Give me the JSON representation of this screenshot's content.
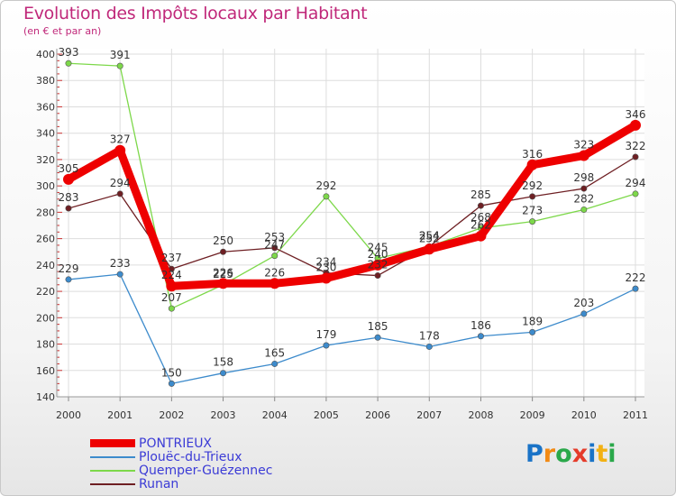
{
  "chart_data": {
    "type": "line",
    "title": "Evolution des Impôts locaux par Habitant",
    "subtitle": "(en € et par an)",
    "x": [
      "2000",
      "2001",
      "2002",
      "2003",
      "2004",
      "2005",
      "2006",
      "2007",
      "2008",
      "2009",
      "2010",
      "2011"
    ],
    "ylim": [
      140,
      400
    ],
    "yticks": [
      140,
      160,
      180,
      200,
      220,
      240,
      260,
      280,
      300,
      320,
      340,
      360,
      380,
      400
    ],
    "grid": true,
    "legend_position": "bottom-left",
    "series": [
      {
        "name": "PONTRIEUX",
        "color": "#ee0000",
        "values": [
          305,
          327,
          224,
          226,
          226,
          230,
          240,
          252,
          262,
          316,
          323,
          346
        ],
        "labels": [
          "305",
          "327",
          "224",
          "226",
          "226",
          "230",
          "240",
          "252",
          "262",
          "316",
          "323",
          "346"
        ]
      },
      {
        "name": "Plouëc-du-Trieux",
        "color": "#3d8bcc",
        "values": [
          229,
          233,
          150,
          158,
          165,
          179,
          185,
          178,
          186,
          189,
          203,
          222
        ],
        "labels": [
          "229",
          "233",
          "150",
          "158",
          "165",
          "179",
          "185",
          "178",
          "186",
          "189",
          "203",
          "222"
        ]
      },
      {
        "name": "Quemper-Guézennec",
        "color": "#7dd84a",
        "values": [
          393,
          391,
          207,
          225,
          247,
          292,
          245,
          254,
          268,
          273,
          282,
          294
        ],
        "labels": [
          "393",
          "391",
          "207",
          "225",
          "247",
          "292",
          "245",
          "254",
          "268",
          "273",
          "282",
          "294"
        ]
      },
      {
        "name": "Runan",
        "color": "#6e1f23",
        "values": [
          283,
          294,
          237,
          250,
          253,
          234,
          232,
          254,
          285,
          292,
          298,
          322
        ],
        "labels": [
          "283",
          "294",
          "237",
          "250",
          "253",
          "234",
          "232",
          "254",
          "285",
          "292",
          "298",
          "322"
        ]
      }
    ]
  },
  "legend": {
    "items": [
      "PONTRIEUX",
      "Plouëc-du-Trieux",
      "Quemper-Guézennec",
      "Runan"
    ]
  },
  "brand": {
    "text": "Proxiti",
    "letters": [
      {
        "char": "P",
        "color": "#1a73c7"
      },
      {
        "char": "r",
        "color": "#f28a14"
      },
      {
        "char": "o",
        "color": "#2aa84a"
      },
      {
        "char": "x",
        "color": "#e53b2a"
      },
      {
        "char": "i",
        "color": "#1a73c7"
      },
      {
        "char": "t",
        "color": "#f2b114"
      },
      {
        "char": "i",
        "color": "#2aa84a"
      }
    ]
  }
}
